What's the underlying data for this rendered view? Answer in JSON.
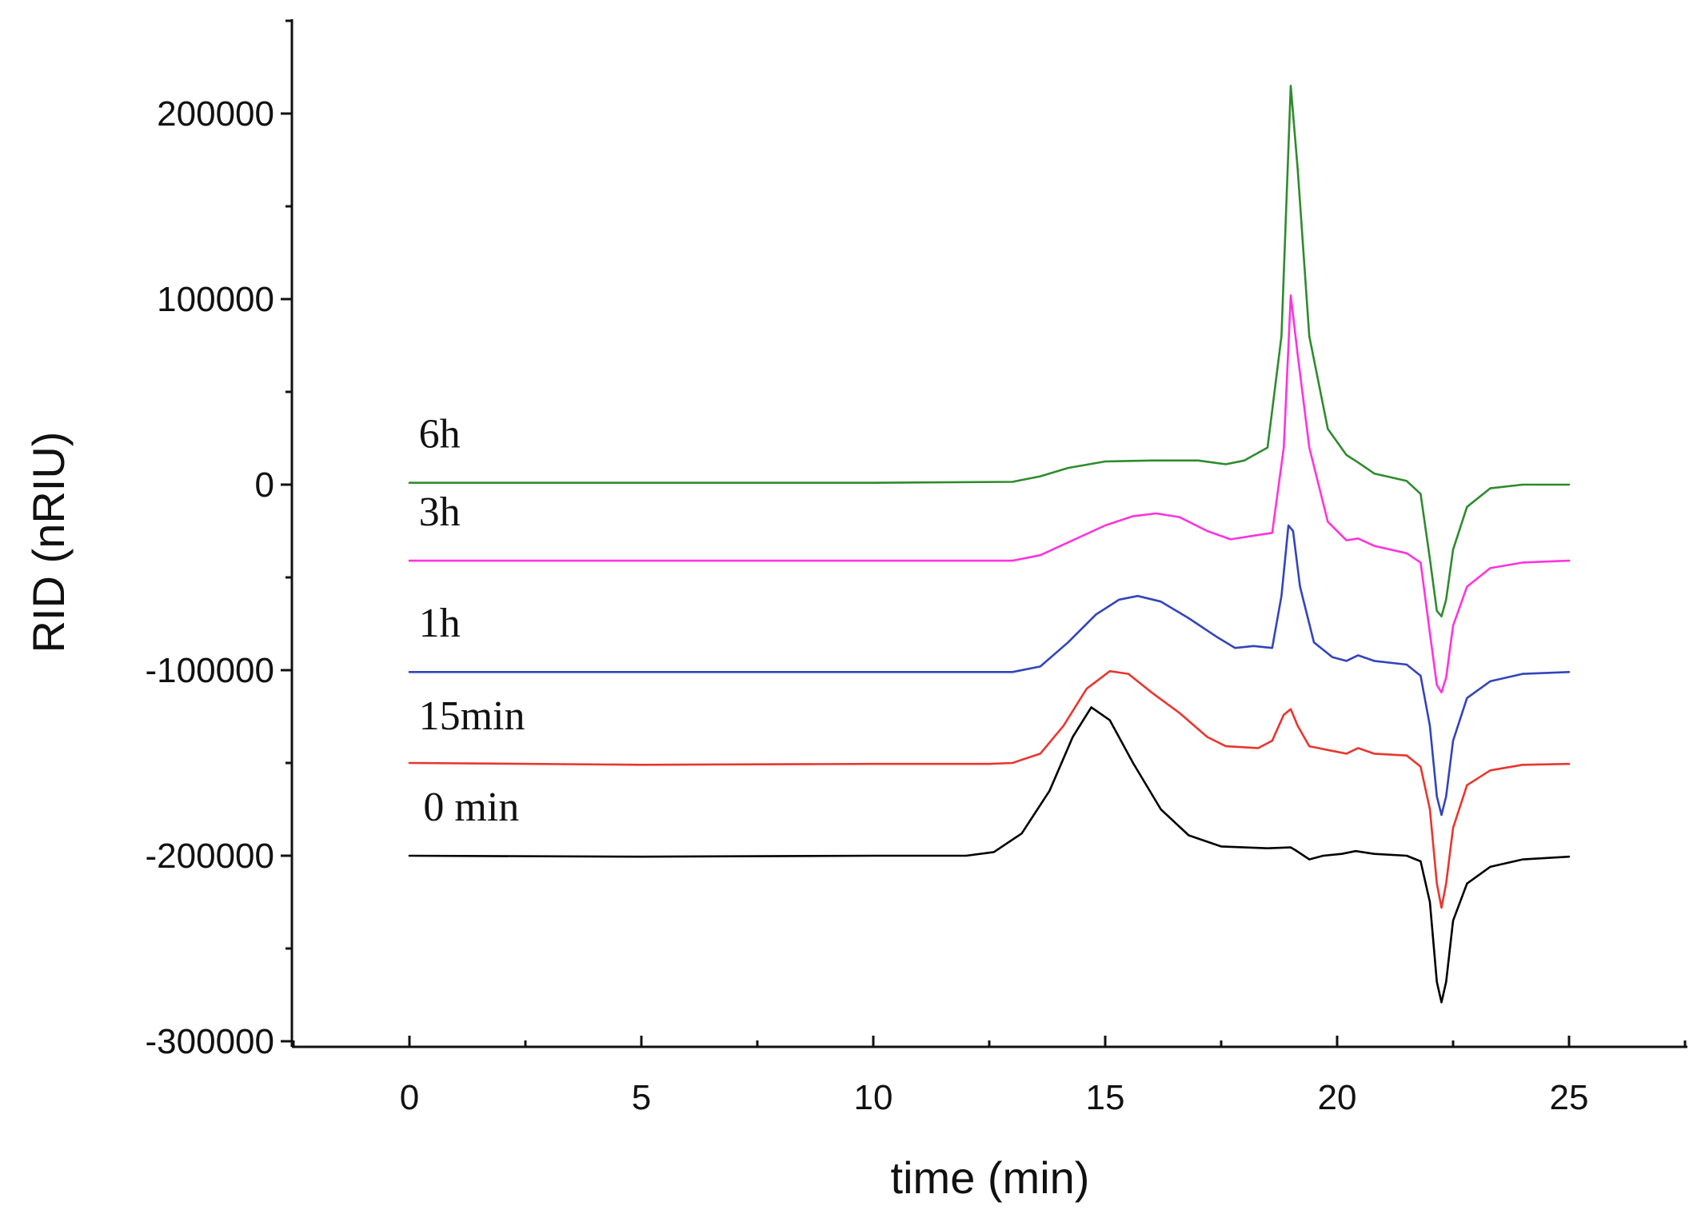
{
  "chart_data": {
    "type": "line",
    "title": "",
    "xlabel": "time (min)",
    "ylabel": "RID (nRIU)",
    "xlim": [
      -2.5,
      27.5
    ],
    "ylim": [
      -300000,
      250000
    ],
    "x_ticks": [
      0,
      5,
      10,
      15,
      20,
      25
    ],
    "x_tick_labels": [
      "0",
      "5",
      "10",
      "15",
      "20",
      "25"
    ],
    "y_ticks": [
      -300000,
      -200000,
      -100000,
      0,
      100000,
      200000
    ],
    "y_tick_labels": [
      "-300000",
      "-200000",
      "-100000",
      "0",
      "100000",
      "200000"
    ],
    "grid": false,
    "series": [
      {
        "name": "0 min",
        "color": "#000000",
        "label": "0 min",
        "label_anchor": [
          0.3,
          -181000
        ],
        "points": [
          [
            0,
            -200000
          ],
          [
            5,
            -200500
          ],
          [
            10,
            -200000
          ],
          [
            12,
            -200000
          ],
          [
            12.6,
            -198000
          ],
          [
            13.2,
            -188000
          ],
          [
            13.8,
            -165000
          ],
          [
            14.3,
            -136000
          ],
          [
            14.7,
            -120000
          ],
          [
            15.1,
            -127000
          ],
          [
            15.6,
            -150000
          ],
          [
            16.2,
            -175000
          ],
          [
            16.8,
            -189000
          ],
          [
            17.5,
            -195000
          ],
          [
            18.5,
            -196000
          ],
          [
            19.0,
            -195500
          ],
          [
            19.1,
            -197000
          ],
          [
            19.4,
            -202000
          ],
          [
            19.7,
            -200000
          ],
          [
            20.1,
            -199000
          ],
          [
            20.4,
            -197500
          ],
          [
            20.8,
            -199000
          ],
          [
            21.5,
            -200000
          ],
          [
            21.8,
            -203000
          ],
          [
            22.0,
            -225000
          ],
          [
            22.15,
            -268000
          ],
          [
            22.25,
            -279000
          ],
          [
            22.35,
            -268000
          ],
          [
            22.5,
            -235000
          ],
          [
            22.8,
            -215000
          ],
          [
            23.3,
            -206000
          ],
          [
            24.0,
            -202000
          ],
          [
            25,
            -200500
          ]
        ]
      },
      {
        "name": "15min",
        "color": "#e8362e",
        "label": "15min",
        "label_anchor": [
          0.2,
          -132000
        ],
        "points": [
          [
            0,
            -150000
          ],
          [
            5,
            -151000
          ],
          [
            10,
            -150500
          ],
          [
            12.5,
            -150500
          ],
          [
            13.0,
            -150000
          ],
          [
            13.6,
            -145000
          ],
          [
            14.1,
            -130000
          ],
          [
            14.6,
            -110000
          ],
          [
            15.1,
            -100500
          ],
          [
            15.5,
            -102000
          ],
          [
            16.0,
            -112000
          ],
          [
            16.6,
            -123000
          ],
          [
            17.2,
            -136000
          ],
          [
            17.6,
            -141000
          ],
          [
            18.3,
            -142000
          ],
          [
            18.6,
            -138000
          ],
          [
            18.85,
            -124000
          ],
          [
            19.0,
            -121000
          ],
          [
            19.15,
            -130000
          ],
          [
            19.4,
            -141000
          ],
          [
            19.8,
            -143000
          ],
          [
            20.2,
            -145000
          ],
          [
            20.45,
            -142000
          ],
          [
            20.8,
            -145000
          ],
          [
            21.5,
            -146000
          ],
          [
            21.8,
            -152000
          ],
          [
            22.0,
            -175000
          ],
          [
            22.15,
            -215000
          ],
          [
            22.25,
            -228000
          ],
          [
            22.35,
            -215000
          ],
          [
            22.5,
            -185000
          ],
          [
            22.8,
            -162000
          ],
          [
            23.3,
            -154000
          ],
          [
            24.0,
            -151000
          ],
          [
            25,
            -150500
          ]
        ]
      },
      {
        "name": "1h",
        "color": "#3344bb",
        "label": "1h",
        "label_anchor": [
          0.2,
          -82000
        ],
        "points": [
          [
            0,
            -101000
          ],
          [
            5,
            -101000
          ],
          [
            10,
            -101000
          ],
          [
            13.0,
            -101000
          ],
          [
            13.6,
            -98000
          ],
          [
            14.2,
            -85000
          ],
          [
            14.8,
            -70000
          ],
          [
            15.3,
            -62000
          ],
          [
            15.7,
            -60000
          ],
          [
            16.2,
            -63000
          ],
          [
            16.8,
            -72000
          ],
          [
            17.4,
            -82000
          ],
          [
            17.8,
            -88000
          ],
          [
            18.2,
            -87000
          ],
          [
            18.6,
            -88000
          ],
          [
            18.8,
            -60000
          ],
          [
            18.95,
            -22000
          ],
          [
            19.05,
            -25000
          ],
          [
            19.2,
            -55000
          ],
          [
            19.5,
            -85000
          ],
          [
            19.9,
            -93000
          ],
          [
            20.2,
            -95000
          ],
          [
            20.45,
            -92000
          ],
          [
            20.8,
            -95000
          ],
          [
            21.5,
            -97000
          ],
          [
            21.8,
            -103000
          ],
          [
            22.0,
            -130000
          ],
          [
            22.15,
            -168000
          ],
          [
            22.25,
            -178000
          ],
          [
            22.35,
            -168000
          ],
          [
            22.5,
            -138000
          ],
          [
            22.8,
            -115000
          ],
          [
            23.3,
            -106000
          ],
          [
            24.0,
            -102000
          ],
          [
            25,
            -101000
          ]
        ]
      },
      {
        "name": "3h",
        "color": "#ff33dd",
        "label": "3h",
        "label_anchor": [
          0.2,
          -22000
        ],
        "points": [
          [
            0,
            -41000
          ],
          [
            5,
            -41000
          ],
          [
            10,
            -41000
          ],
          [
            13.0,
            -41000
          ],
          [
            13.6,
            -38000
          ],
          [
            14.3,
            -30000
          ],
          [
            15.0,
            -22000
          ],
          [
            15.6,
            -17000
          ],
          [
            16.1,
            -15500
          ],
          [
            16.6,
            -17500
          ],
          [
            17.2,
            -25000
          ],
          [
            17.7,
            -29500
          ],
          [
            18.2,
            -27500
          ],
          [
            18.6,
            -26000
          ],
          [
            18.85,
            20000
          ],
          [
            19.0,
            102000
          ],
          [
            19.15,
            70000
          ],
          [
            19.4,
            20000
          ],
          [
            19.8,
            -20000
          ],
          [
            20.2,
            -30000
          ],
          [
            20.45,
            -29000
          ],
          [
            20.8,
            -33000
          ],
          [
            21.5,
            -37000
          ],
          [
            21.8,
            -42000
          ],
          [
            22.0,
            -80000
          ],
          [
            22.15,
            -108000
          ],
          [
            22.25,
            -112000
          ],
          [
            22.35,
            -104000
          ],
          [
            22.5,
            -76000
          ],
          [
            22.8,
            -55000
          ],
          [
            23.3,
            -45000
          ],
          [
            24.0,
            -42000
          ],
          [
            25,
            -41000
          ]
        ]
      },
      {
        "name": "6h",
        "color": "#2e8b2e",
        "label": "6h",
        "label_anchor": [
          0.2,
          20000
        ],
        "points": [
          [
            0,
            1000
          ],
          [
            5,
            1000
          ],
          [
            10,
            1000
          ],
          [
            13.0,
            1500
          ],
          [
            13.6,
            4500
          ],
          [
            14.2,
            9000
          ],
          [
            15.0,
            12500
          ],
          [
            16.0,
            13000
          ],
          [
            17.0,
            13000
          ],
          [
            17.6,
            11000
          ],
          [
            18.0,
            13000
          ],
          [
            18.5,
            20000
          ],
          [
            18.8,
            80000
          ],
          [
            19.0,
            215000
          ],
          [
            19.15,
            170000
          ],
          [
            19.4,
            80000
          ],
          [
            19.8,
            30000
          ],
          [
            20.2,
            16000
          ],
          [
            20.45,
            12000
          ],
          [
            20.8,
            6000
          ],
          [
            21.5,
            2000
          ],
          [
            21.8,
            -5000
          ],
          [
            22.0,
            -40000
          ],
          [
            22.15,
            -68000
          ],
          [
            22.25,
            -71000
          ],
          [
            22.35,
            -62000
          ],
          [
            22.5,
            -35000
          ],
          [
            22.8,
            -12000
          ],
          [
            23.3,
            -2000
          ],
          [
            24.0,
            0
          ],
          [
            25,
            0
          ]
        ]
      }
    ]
  }
}
